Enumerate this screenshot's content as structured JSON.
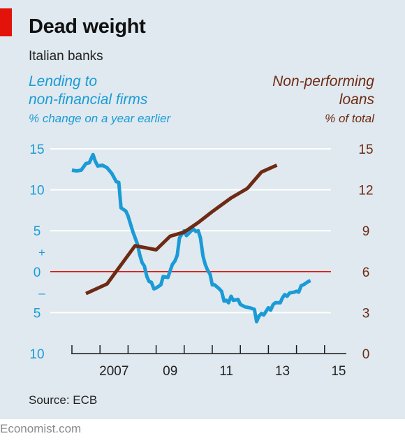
{
  "title": "Dead weight",
  "subtitle": "Italian banks",
  "left_heading": [
    "Lending to",
    "non-financial firms"
  ],
  "left_unit": "% change on a year earlier",
  "right_heading": [
    "Non-performing",
    "loans"
  ],
  "right_unit": "% of total",
  "source": "Source: ECB",
  "brand": "Economist.com",
  "colors": {
    "lending": "#1b9bd6",
    "npl": "#6e2a14",
    "zero_line": "#e3120b",
    "grid": "#ffffff",
    "background": "#dfe9ef"
  },
  "chart_data": {
    "type": "line",
    "grid": true,
    "x_tick_labels": [
      "2007",
      "09",
      "11",
      "13",
      "15"
    ],
    "x_tick_years": [
      2007,
      2009,
      2011,
      2013,
      2015
    ],
    "xlim": [
      2006,
      2016
    ],
    "left_axis": {
      "ylim": [
        -10,
        15
      ],
      "ticks": [
        15,
        10,
        5,
        0,
        -5,
        -10
      ],
      "tick_labels": [
        "15",
        "10",
        "5",
        "0",
        "5",
        "10"
      ],
      "sign_plus": "+",
      "sign_minus": "–"
    },
    "right_axis": {
      "ylim": [
        0,
        15
      ],
      "ticks": [
        15,
        12,
        9,
        6,
        3,
        0
      ],
      "tick_labels": [
        "15",
        "12",
        "9",
        "6",
        "3",
        "0"
      ]
    },
    "series": [
      {
        "name": "Lending to non-financial firms",
        "axis": "left",
        "points": [
          [
            2006.0,
            12.4
          ],
          [
            2006.17,
            12.3
          ],
          [
            2006.33,
            12.4
          ],
          [
            2006.5,
            13.2
          ],
          [
            2006.62,
            13.3
          ],
          [
            2006.75,
            14.3
          ],
          [
            2006.83,
            13.5
          ],
          [
            2006.92,
            12.9
          ],
          [
            2007.08,
            13.0
          ],
          [
            2007.25,
            12.7
          ],
          [
            2007.42,
            12.0
          ],
          [
            2007.58,
            11.0
          ],
          [
            2007.67,
            10.9
          ],
          [
            2007.75,
            7.8
          ],
          [
            2007.92,
            7.4
          ],
          [
            2008.0,
            6.8
          ],
          [
            2008.17,
            4.9
          ],
          [
            2008.33,
            3.4
          ],
          [
            2008.42,
            2.0
          ],
          [
            2008.5,
            1.1
          ],
          [
            2008.58,
            0.7
          ],
          [
            2008.67,
            -0.6
          ],
          [
            2008.75,
            -1.2
          ],
          [
            2008.83,
            -1.3
          ],
          [
            2008.92,
            -2.1
          ],
          [
            2009.0,
            -2.0
          ],
          [
            2009.17,
            -1.6
          ],
          [
            2009.25,
            -0.6
          ],
          [
            2009.42,
            -0.7
          ],
          [
            2009.5,
            0.1
          ],
          [
            2009.58,
            0.9
          ],
          [
            2009.67,
            1.3
          ],
          [
            2009.75,
            2.0
          ],
          [
            2009.83,
            4.1
          ],
          [
            2009.92,
            4.6
          ],
          [
            2010.0,
            5.0
          ],
          [
            2010.08,
            4.4
          ],
          [
            2010.17,
            4.7
          ],
          [
            2010.25,
            5.0
          ],
          [
            2010.33,
            5.2
          ],
          [
            2010.42,
            4.9
          ],
          [
            2010.5,
            5.0
          ],
          [
            2010.58,
            4.1
          ],
          [
            2010.67,
            1.9
          ],
          [
            2010.75,
            0.9
          ],
          [
            2010.83,
            0.2
          ],
          [
            2010.92,
            -0.3
          ],
          [
            2011.0,
            -1.6
          ],
          [
            2011.08,
            -1.6
          ],
          [
            2011.25,
            -2.1
          ],
          [
            2011.33,
            -2.4
          ],
          [
            2011.42,
            -3.6
          ],
          [
            2011.5,
            -3.5
          ],
          [
            2011.58,
            -3.8
          ],
          [
            2011.67,
            -3.0
          ],
          [
            2011.75,
            -3.5
          ],
          [
            2011.92,
            -3.4
          ],
          [
            2012.0,
            -4.0
          ],
          [
            2012.17,
            -4.3
          ],
          [
            2012.33,
            -4.4
          ],
          [
            2012.5,
            -4.6
          ],
          [
            2012.58,
            -6.1
          ],
          [
            2012.67,
            -5.4
          ],
          [
            2012.75,
            -5.1
          ],
          [
            2012.83,
            -5.3
          ],
          [
            2013.0,
            -4.4
          ],
          [
            2013.08,
            -4.7
          ],
          [
            2013.17,
            -4.0
          ],
          [
            2013.25,
            -3.8
          ],
          [
            2013.42,
            -3.8
          ],
          [
            2013.5,
            -3.2
          ],
          [
            2013.58,
            -2.8
          ],
          [
            2013.67,
            -3.0
          ],
          [
            2013.75,
            -2.6
          ],
          [
            2013.92,
            -2.5
          ],
          [
            2014.0,
            -2.4
          ],
          [
            2014.08,
            -2.5
          ],
          [
            2014.17,
            -1.7
          ],
          [
            2014.25,
            -1.6
          ],
          [
            2014.42,
            -1.2
          ],
          [
            2014.5,
            -1.1
          ]
        ]
      },
      {
        "name": "Non-performing loans",
        "axis": "right",
        "points": [
          [
            2006.5,
            4.4
          ],
          [
            2007.25,
            5.1
          ],
          [
            2008.25,
            7.9
          ],
          [
            2009.0,
            7.6
          ],
          [
            2009.5,
            8.6
          ],
          [
            2010.0,
            8.9
          ],
          [
            2010.5,
            9.6
          ],
          [
            2011.0,
            10.4
          ],
          [
            2011.67,
            11.4
          ],
          [
            2012.25,
            12.1
          ],
          [
            2012.75,
            13.3
          ],
          [
            2013.3,
            13.8
          ]
        ]
      }
    ]
  }
}
